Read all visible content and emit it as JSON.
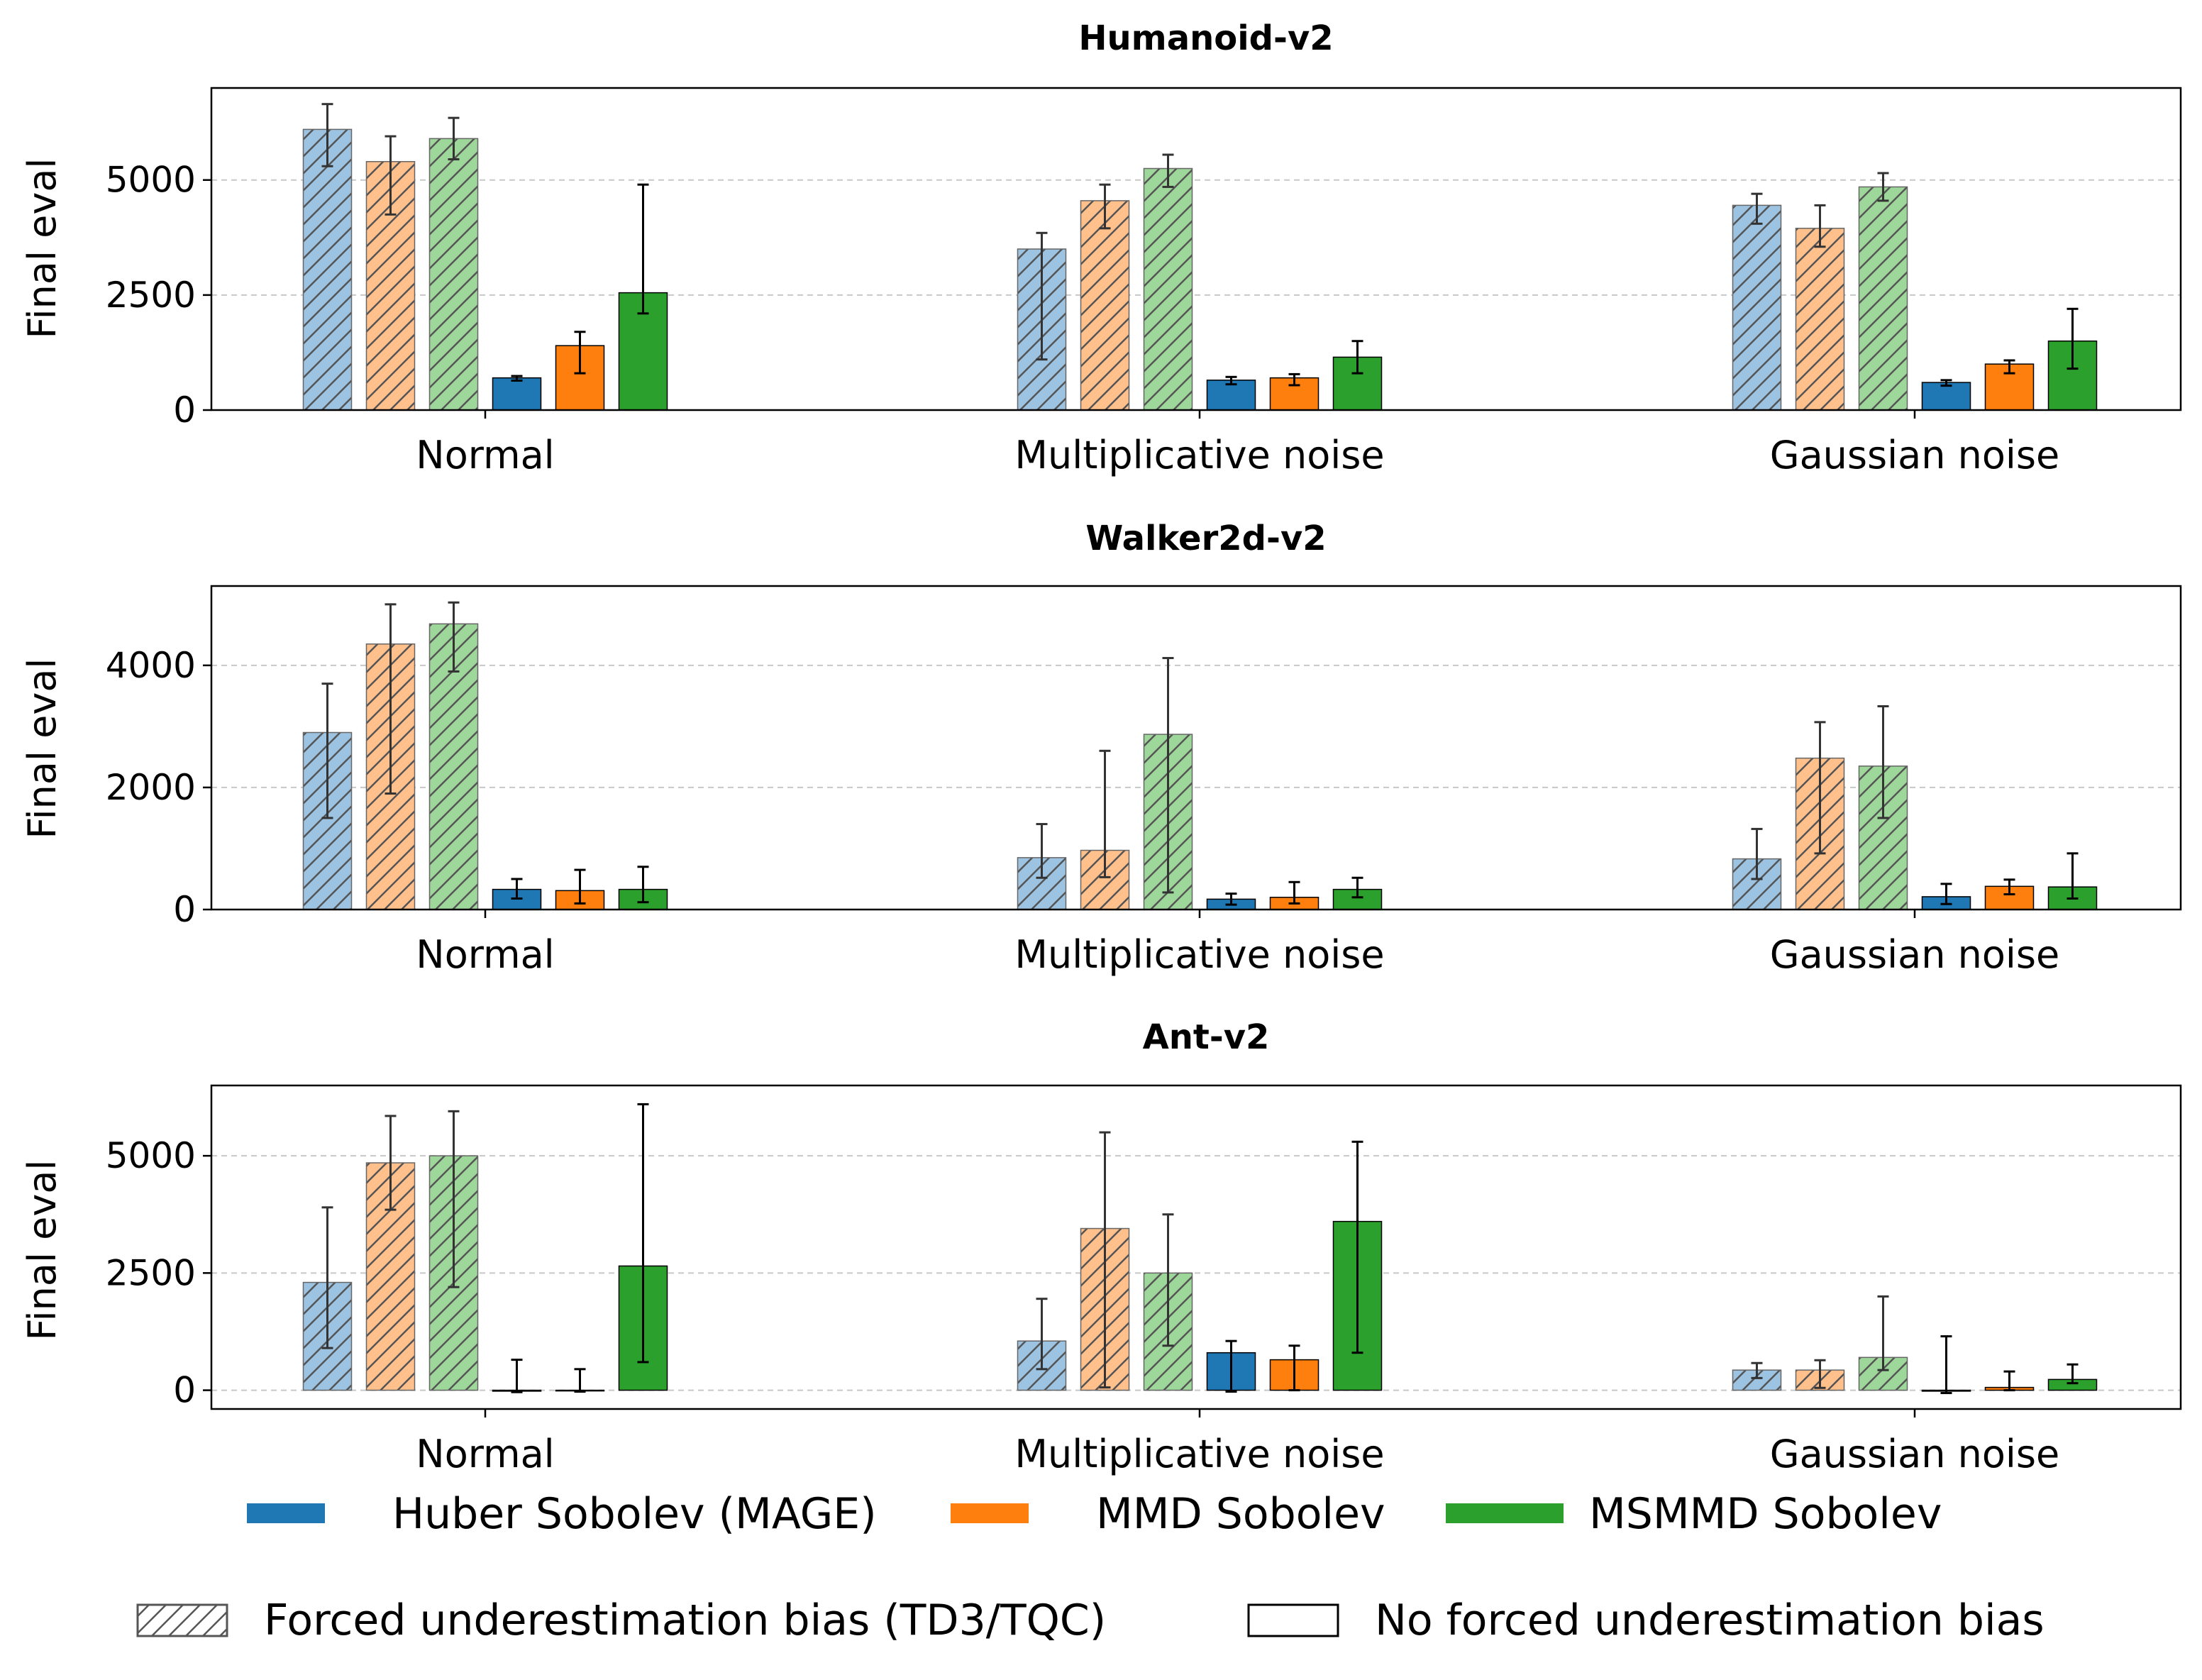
{
  "figure": {
    "ylabel": "Final eval",
    "categories": [
      "Normal",
      "Multiplicative noise",
      "Gaussian noise"
    ],
    "legend": {
      "methods": [
        {
          "label": "Huber Sobolev (MAGE)",
          "color": "#1f77b4"
        },
        {
          "label": "MMD Sobolev",
          "color": "#ff7f0e"
        },
        {
          "label": "MSMMD Sobolev",
          "color": "#2ca02c"
        }
      ],
      "styles": [
        {
          "label": "Forced underestimation bias (TD3/TQC)",
          "pattern": "hatched"
        },
        {
          "label": "No forced underestimation bias",
          "pattern": "solid"
        }
      ]
    }
  },
  "chart_data": [
    {
      "type": "bar",
      "title": "Humanoid-v2",
      "xlabel": "",
      "ylabel": "Final eval",
      "categories": [
        "Normal",
        "Multiplicative noise",
        "Gaussian noise"
      ],
      "ylim": [
        0,
        7000
      ],
      "yticks": [
        0,
        2500,
        5000
      ],
      "grid": true,
      "series": [
        {
          "name": "Huber Sobolev (MAGE) - forced bias",
          "method": 0,
          "hatched": true,
          "values": [
            6100,
            3500,
            4450
          ],
          "err_low": [
            5300,
            1100,
            4050
          ],
          "err_high": [
            6650,
            3850,
            4700
          ]
        },
        {
          "name": "MMD Sobolev - forced bias",
          "method": 1,
          "hatched": true,
          "values": [
            5400,
            4550,
            3950
          ],
          "err_low": [
            4250,
            3950,
            3550
          ],
          "err_high": [
            5950,
            4900,
            4450
          ]
        },
        {
          "name": "MSMMD Sobolev - forced bias",
          "method": 2,
          "hatched": true,
          "values": [
            5900,
            5250,
            4850
          ],
          "err_low": [
            5450,
            4850,
            4550
          ],
          "err_high": [
            6350,
            5550,
            5150
          ]
        },
        {
          "name": "Huber Sobolev (MAGE) - no forced bias",
          "method": 0,
          "hatched": false,
          "values": [
            700,
            650,
            600
          ],
          "err_low": [
            640,
            560,
            530
          ],
          "err_high": [
            740,
            720,
            650
          ]
        },
        {
          "name": "MMD Sobolev - no forced bias",
          "method": 1,
          "hatched": false,
          "values": [
            1400,
            700,
            1000
          ],
          "err_low": [
            800,
            540,
            800
          ],
          "err_high": [
            1700,
            780,
            1080
          ]
        },
        {
          "name": "MSMMD Sobolev - no forced bias",
          "method": 2,
          "hatched": false,
          "values": [
            2550,
            1150,
            1500
          ],
          "err_low": [
            2100,
            800,
            900
          ],
          "err_high": [
            4900,
            1500,
            2200
          ]
        }
      ]
    },
    {
      "type": "bar",
      "title": "Walker2d-v2",
      "xlabel": "",
      "ylabel": "Final eval",
      "categories": [
        "Normal",
        "Multiplicative noise",
        "Gaussian noise"
      ],
      "ylim": [
        0,
        5300
      ],
      "yticks": [
        0,
        2000,
        4000
      ],
      "grid": true,
      "series": [
        {
          "name": "Huber Sobolev (MAGE) - forced bias",
          "method": 0,
          "hatched": true,
          "values": [
            2900,
            850,
            830
          ],
          "err_low": [
            1500,
            520,
            500
          ],
          "err_high": [
            3700,
            1400,
            1320
          ]
        },
        {
          "name": "MMD Sobolev - forced bias",
          "method": 1,
          "hatched": true,
          "values": [
            4350,
            970,
            2480
          ],
          "err_low": [
            1900,
            530,
            920
          ],
          "err_high": [
            5000,
            2600,
            3070
          ]
        },
        {
          "name": "MSMMD Sobolev - forced bias",
          "method": 2,
          "hatched": true,
          "values": [
            4680,
            2870,
            2350
          ],
          "err_low": [
            3900,
            280,
            1500
          ],
          "err_high": [
            5030,
            4120,
            3330
          ]
        },
        {
          "name": "Huber Sobolev (MAGE) - no forced bias",
          "method": 0,
          "hatched": false,
          "values": [
            330,
            170,
            210
          ],
          "err_low": [
            180,
            80,
            90
          ],
          "err_high": [
            500,
            260,
            420
          ]
        },
        {
          "name": "MMD Sobolev - no forced bias",
          "method": 1,
          "hatched": false,
          "values": [
            310,
            200,
            380
          ],
          "err_low": [
            100,
            100,
            250
          ],
          "err_high": [
            650,
            450,
            490
          ]
        },
        {
          "name": "MSMMD Sobolev - no forced bias",
          "method": 2,
          "hatched": false,
          "values": [
            330,
            330,
            370
          ],
          "err_low": [
            120,
            200,
            180
          ],
          "err_high": [
            700,
            520,
            920
          ]
        }
      ]
    },
    {
      "type": "bar",
      "title": "Ant-v2",
      "xlabel": "",
      "ylabel": "Final eval",
      "categories": [
        "Normal",
        "Multiplicative noise",
        "Gaussian noise"
      ],
      "ylim": [
        -400,
        6500
      ],
      "yticks": [
        0,
        2500,
        5000
      ],
      "grid": true,
      "series": [
        {
          "name": "Huber Sobolev (MAGE) - forced bias",
          "method": 0,
          "hatched": true,
          "values": [
            2300,
            1050,
            430
          ],
          "err_low": [
            900,
            450,
            260
          ],
          "err_high": [
            3900,
            1950,
            580
          ]
        },
        {
          "name": "MMD Sobolev - forced bias",
          "method": 1,
          "hatched": true,
          "values": [
            4850,
            3450,
            430
          ],
          "err_low": [
            3850,
            60,
            50
          ],
          "err_high": [
            5850,
            5500,
            640
          ]
        },
        {
          "name": "MSMMD Sobolev - forced bias",
          "method": 2,
          "hatched": true,
          "values": [
            5000,
            2500,
            700
          ],
          "err_low": [
            2200,
            950,
            430
          ],
          "err_high": [
            5950,
            3750,
            2000
          ]
        },
        {
          "name": "Huber Sobolev (MAGE) - no forced bias",
          "method": 0,
          "hatched": false,
          "values": [
            -20,
            800,
            -20
          ],
          "err_low": [
            -40,
            -30,
            -60
          ],
          "err_high": [
            650,
            1050,
            1150
          ]
        },
        {
          "name": "MMD Sobolev - no forced bias",
          "method": 1,
          "hatched": false,
          "values": [
            -10,
            650,
            60
          ],
          "err_low": [
            -30,
            0,
            0
          ],
          "err_high": [
            450,
            950,
            400
          ]
        },
        {
          "name": "MSMMD Sobolev - no forced bias",
          "method": 2,
          "hatched": false,
          "values": [
            2650,
            3600,
            230
          ],
          "err_low": [
            600,
            800,
            150
          ],
          "err_high": [
            6100,
            5300,
            550
          ]
        }
      ]
    }
  ]
}
